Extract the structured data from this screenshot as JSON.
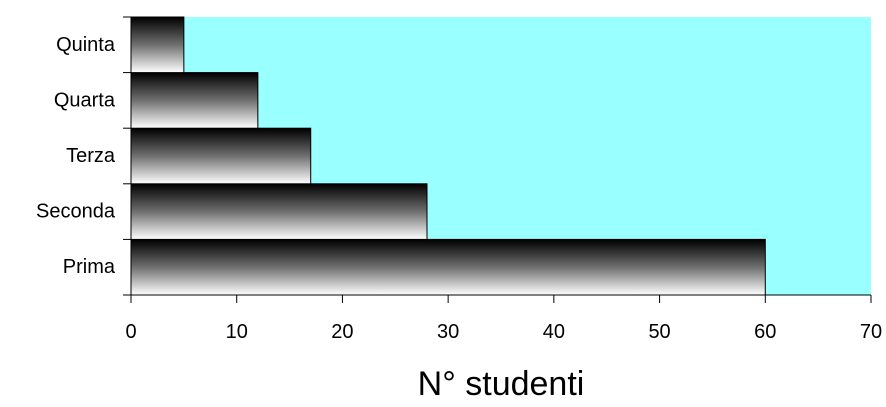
{
  "chart_data": {
    "type": "bar",
    "orientation": "horizontal",
    "categories": [
      "Prima",
      "Seconda",
      "Terza",
      "Quarta",
      "Quinta"
    ],
    "values": [
      60,
      28,
      17,
      12,
      5
    ],
    "xlabel": "N° studenti",
    "ylabel": "",
    "xlim": [
      0,
      70
    ],
    "xticks": [
      0,
      10,
      20,
      30,
      40,
      50,
      60,
      70
    ],
    "grid": false,
    "legend": "none",
    "colors": {
      "plot_background": "#99ffff",
      "bar_dark": "#000000",
      "bar_light": "#ffffff",
      "axis": "#000000"
    }
  }
}
